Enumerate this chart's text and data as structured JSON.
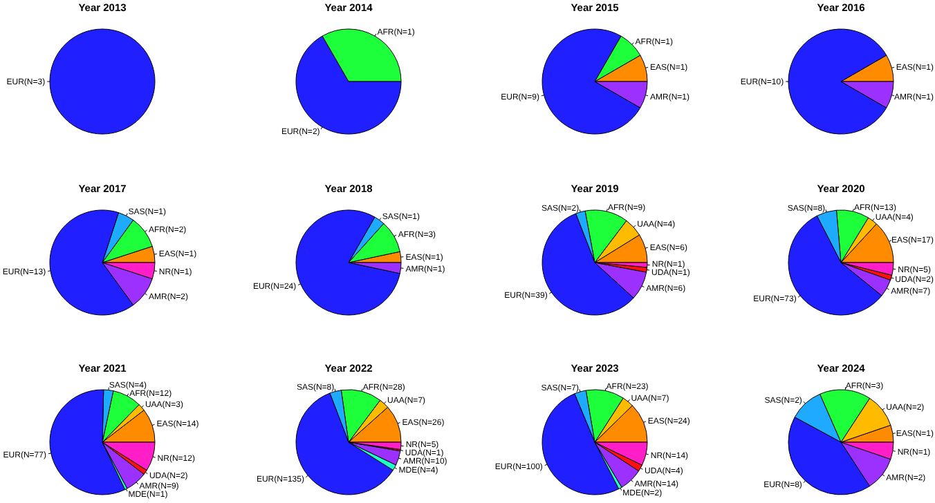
{
  "chart_data": [
    {
      "type": "pie",
      "title": "Year 2013",
      "categories": [
        "EUR(N=3)"
      ],
      "values": [
        3
      ],
      "colors": [
        "#1f1fff"
      ]
    },
    {
      "type": "pie",
      "title": "Year 2014",
      "categories": [
        "AFR(N=1)",
        "EUR(N=2)"
      ],
      "values": [
        1,
        2
      ],
      "colors": [
        "#1eff3c",
        "#1f1fff"
      ]
    },
    {
      "type": "pie",
      "title": "Year 2015",
      "categories": [
        "EAS(N=1)",
        "AFR(N=1)",
        "EUR(N=9)",
        "AMR(N=1)"
      ],
      "values": [
        1,
        1,
        9,
        1
      ],
      "colors": [
        "#ff8c00",
        "#1eff3c",
        "#1f1fff",
        "#9b30ff"
      ]
    },
    {
      "type": "pie",
      "title": "Year 2016",
      "categories": [
        "EAS(N=1)",
        "EUR(N=10)",
        "AMR(N=1)"
      ],
      "values": [
        1,
        10,
        1
      ],
      "colors": [
        "#ff8c00",
        "#1f1fff",
        "#9b30ff"
      ]
    },
    {
      "type": "pie",
      "title": "Year 2017",
      "categories": [
        "EAS(N=1)",
        "AFR(N=2)",
        "SAS(N=1)",
        "EUR(N=13)",
        "AMR(N=2)",
        "NR(N=1)"
      ],
      "values": [
        1,
        2,
        1,
        13,
        2,
        1
      ],
      "colors": [
        "#ff8c00",
        "#1eff3c",
        "#1eaaff",
        "#1f1fff",
        "#9b30ff",
        "#ff1ec8"
      ]
    },
    {
      "type": "pie",
      "title": "Year 2018",
      "categories": [
        "EAS(N=1)",
        "AFR(N=3)",
        "SAS(N=1)",
        "EUR(N=24)",
        "AMR(N=1)"
      ],
      "values": [
        1,
        3,
        1,
        24,
        1
      ],
      "colors": [
        "#ff8c00",
        "#1eff3c",
        "#1eaaff",
        "#1f1fff",
        "#9b30ff"
      ]
    },
    {
      "type": "pie",
      "title": "Year 2019",
      "categories": [
        "EAS(N=6)",
        "UAA(N=4)",
        "AFR(N=9)",
        "SAS(N=2)",
        "EUR(N=39)",
        "AMR(N=6)",
        "UDA(N=1)",
        "NR(N=1)"
      ],
      "values": [
        6,
        4,
        9,
        2,
        39,
        6,
        1,
        1
      ],
      "colors": [
        "#ff8c00",
        "#ffbb00",
        "#1eff3c",
        "#1eaaff",
        "#1f1fff",
        "#9b30ff",
        "#ff1010",
        "#ff1ec8"
      ]
    },
    {
      "type": "pie",
      "title": "Year 2020",
      "categories": [
        "EAS(N=17)",
        "UAA(N=4)",
        "AFR(N=13)",
        "SAS(N=8)",
        "EUR(N=73)",
        "AMR(N=7)",
        "UDA(N=2)",
        "NR(N=5)"
      ],
      "values": [
        17,
        4,
        13,
        8,
        73,
        7,
        2,
        5
      ],
      "colors": [
        "#ff8c00",
        "#ffbb00",
        "#1eff3c",
        "#1eaaff",
        "#1f1fff",
        "#9b30ff",
        "#ff1010",
        "#ff1ec8"
      ]
    },
    {
      "type": "pie",
      "title": "Year 2021",
      "categories": [
        "EAS(N=14)",
        "UAA(N=3)",
        "AFR(N=12)",
        "SAS(N=4)",
        "EUR(N=77)",
        "MDE(N=1)",
        "AMR(N=9)",
        "UDA(N=2)",
        "NR(N=12)"
      ],
      "values": [
        14,
        3,
        12,
        4,
        77,
        1,
        9,
        2,
        12
      ],
      "colors": [
        "#ff8c00",
        "#ffbb00",
        "#1eff3c",
        "#1eaaff",
        "#1f1fff",
        "#1effc8",
        "#9b30ff",
        "#ff1010",
        "#ff1ec8"
      ]
    },
    {
      "type": "pie",
      "title": "Year 2022",
      "categories": [
        "EAS(N=26)",
        "UAA(N=7)",
        "AFR(N=28)",
        "SAS(N=8)",
        "EUR(N=135)",
        "MDE(N=4)",
        "AMR(N=10)",
        "UDA(N=1)",
        "NR(N=5)"
      ],
      "values": [
        26,
        7,
        28,
        8,
        135,
        4,
        10,
        1,
        5
      ],
      "colors": [
        "#ff8c00",
        "#ffbb00",
        "#1eff3c",
        "#1eaaff",
        "#1f1fff",
        "#1effc8",
        "#9b30ff",
        "#ff1010",
        "#ff1ec8"
      ]
    },
    {
      "type": "pie",
      "title": "Year 2023",
      "categories": [
        "EAS(N=24)",
        "UAA(N=7)",
        "AFR(N=23)",
        "SAS(N=7)",
        "EUR(N=100)",
        "MDE(N=2)",
        "AMR(N=14)",
        "UDA(N=4)",
        "NR(N=14)"
      ],
      "values": [
        24,
        7,
        23,
        7,
        100,
        2,
        14,
        4,
        14
      ],
      "colors": [
        "#ff8c00",
        "#ffbb00",
        "#1eff3c",
        "#1eaaff",
        "#1f1fff",
        "#1effc8",
        "#9b30ff",
        "#ff1010",
        "#ff1ec8"
      ]
    },
    {
      "type": "pie",
      "title": "Year 2024",
      "categories": [
        "EAS(N=1)",
        "UAA(N=2)",
        "AFR(N=3)",
        "SAS(N=2)",
        "EUR(N=8)",
        "AMR(N=2)",
        "NR(N=1)"
      ],
      "values": [
        1,
        2,
        3,
        2,
        8,
        2,
        1
      ],
      "colors": [
        "#ff8c00",
        "#ffbb00",
        "#1eff3c",
        "#1eaaff",
        "#1f1fff",
        "#9b30ff",
        "#ff1ec8"
      ]
    }
  ]
}
